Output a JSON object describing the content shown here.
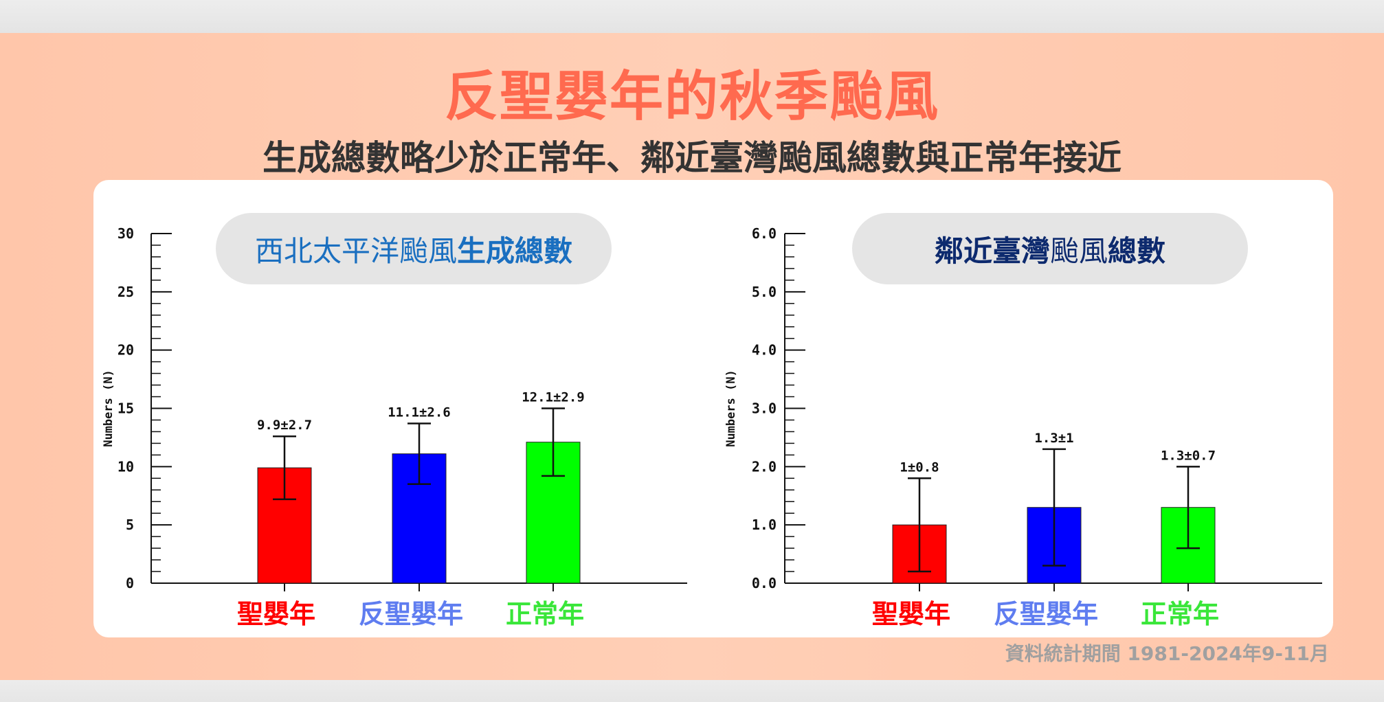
{
  "title": "反聖嬰年的秋季颱風",
  "subtitle": "生成總數略少於正常年、鄰近臺灣颱風總數與正常年接近",
  "footnote": "資料統計期間 1981-2024年9-11月",
  "colors": {
    "title": "#ff6a4f",
    "el_nino": "#ff0000",
    "la_nina": "#0000ff",
    "normal": "#00ff00",
    "la_nina_label": "#5f7df0",
    "normal_label": "#39e639"
  },
  "chart_data": [
    {
      "type": "bar",
      "title_plain": "西北太平洋颱風",
      "title_bold": "生成總數",
      "ylabel": "Numbers (N)",
      "categories": [
        "聖嬰年",
        "反聖嬰年",
        "正常年"
      ],
      "values": [
        9.9,
        11.1,
        12.1
      ],
      "errors": [
        2.7,
        2.6,
        2.9
      ],
      "data_labels": [
        "9.9±2.7",
        "11.1±2.6",
        "12.1±2.9"
      ],
      "ylim": [
        0,
        30
      ],
      "yticks": [
        "0",
        "5",
        "10",
        "15",
        "20",
        "25",
        "30"
      ],
      "grid": false,
      "legend": "none"
    },
    {
      "type": "bar",
      "title_plain": "鄰近臺灣",
      "title_mid": "颱風",
      "title_bold": "總數",
      "ylabel": "Numbers (N)",
      "categories": [
        "聖嬰年",
        "反聖嬰年",
        "正常年"
      ],
      "values": [
        1.0,
        1.3,
        1.3
      ],
      "errors": [
        0.8,
        1.0,
        0.7
      ],
      "data_labels": [
        "1±0.8",
        "1.3±1",
        "1.3±0.7"
      ],
      "ylim": [
        0,
        6
      ],
      "yticks": [
        "0.0",
        "1.0",
        "2.0",
        "3.0",
        "4.0",
        "5.0",
        "6.0"
      ],
      "grid": false,
      "legend": "none"
    }
  ]
}
